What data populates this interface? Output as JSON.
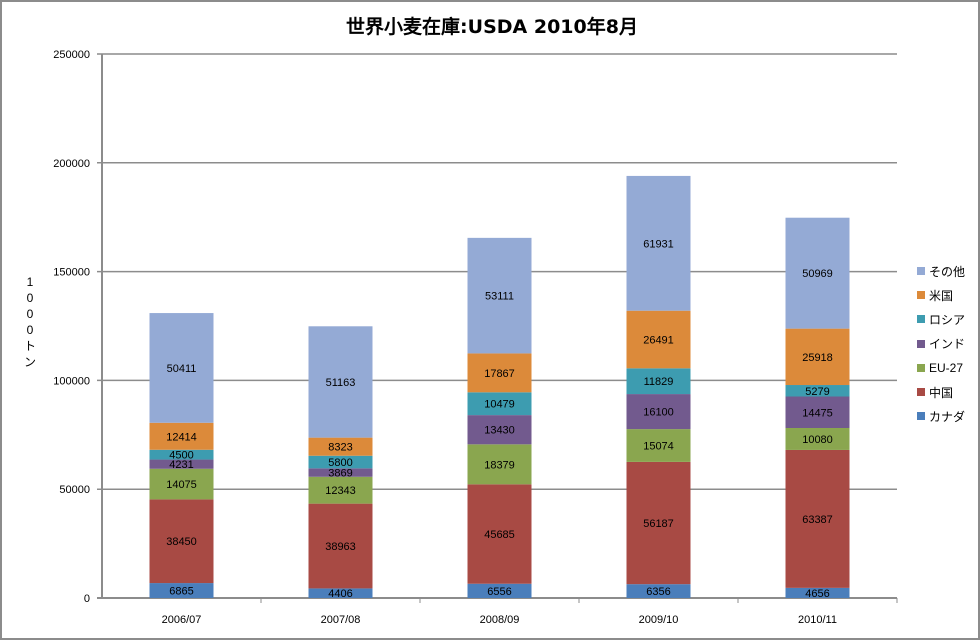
{
  "chart_data": {
    "type": "bar",
    "stacked": true,
    "title": "世界小麦在庫:USDA 2010年8月",
    "xlabel": "",
    "ylabel": "1000トン",
    "ylim": [
      0,
      250000
    ],
    "yticks": [
      "0",
      "50000",
      "100000",
      "150000",
      "200000",
      "250000"
    ],
    "categories": [
      "2006/07",
      "2007/08",
      "2008/09",
      "2009/10",
      "2010/11"
    ],
    "grid": true,
    "legend_position": "right",
    "series": [
      {
        "name": "カナダ",
        "color": "#4a7ebb",
        "values": [
          6865,
          4406,
          6556,
          6356,
          4656
        ]
      },
      {
        "name": "中国",
        "color": "#a84a44",
        "values": [
          38450,
          38963,
          45685,
          56187,
          63387
        ]
      },
      {
        "name": "EU-27",
        "color": "#8aa64f",
        "values": [
          14075,
          12343,
          18379,
          15074,
          10080
        ]
      },
      {
        "name": "インド",
        "color": "#725a8e",
        "values": [
          4231,
          3869,
          13430,
          16100,
          14475
        ]
      },
      {
        "name": "ロシア",
        "color": "#3d9cb0",
        "values": [
          4500,
          5800,
          10479,
          11829,
          5279
        ]
      },
      {
        "name": "米国",
        "color": "#dc8a3a",
        "values": [
          12414,
          8323,
          17867,
          26491,
          25918
        ]
      },
      {
        "name": "その他",
        "color": "#94aad5",
        "values": [
          50411,
          51163,
          53111,
          61931,
          50969
        ]
      }
    ]
  }
}
